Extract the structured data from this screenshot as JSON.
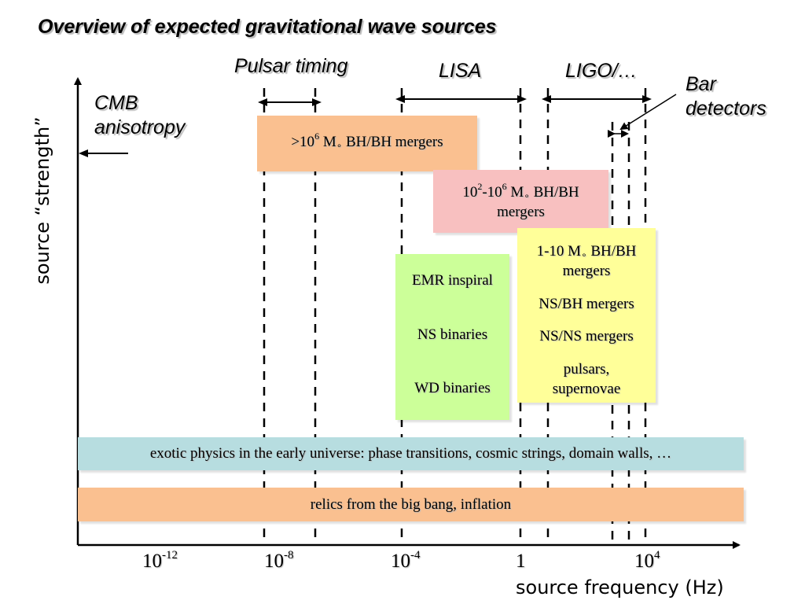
{
  "title": "Overview of expected gravitational wave sources",
  "axes": {
    "xlabel": "source frequency (Hz)",
    "ylabel": "source “strength”",
    "ticks": [
      {
        "base": "10",
        "exp": "-12"
      },
      {
        "base": "10",
        "exp": "-8"
      },
      {
        "base": "10",
        "exp": "-4"
      },
      {
        "base": "1",
        "exp": ""
      },
      {
        "base": "10",
        "exp": "4"
      }
    ]
  },
  "detectors": {
    "pulsar_timing": "Pulsar timing",
    "lisa": "LISA",
    "ligo": "LIGO/…",
    "bar": "Bar detectors"
  },
  "cmb": "CMB anisotropy",
  "boxes": {
    "smbh": {
      "prefix": ">10",
      "exp": "6",
      "mass": "M",
      "sub": "∘",
      "suffix": " BH/BH mergers",
      "color": "#fac090"
    },
    "imbh": {
      "base1": "10",
      "exp1": "2",
      "mid": "-10",
      "exp2": "6",
      "mass": "M",
      "sub": "∘",
      "suffix": " BH/BH",
      "line2": "mergers",
      "color": "#f8c0c0"
    },
    "lisa_sources": {
      "items": [
        "EMR inspiral",
        "NS binaries",
        "WD binaries"
      ],
      "color": "#ccff99"
    },
    "ligo_sources": {
      "first_line1": "1-10 M",
      "first_sub": "∘",
      "first_line1b": " BH/BH",
      "first_line2": "mergers",
      "items": [
        "NS/BH mergers",
        "NS/NS mergers"
      ],
      "last_line1": "pulsars,",
      "last_line2": "supernovae",
      "color": "#ffff99"
    },
    "exotic": {
      "text": "exotic physics in the early universe: phase transitions, cosmic strings, domain walls, …",
      "color": "#b7dde0"
    },
    "relics": {
      "text": "relics from the big bang, inflation",
      "color": "#fac090"
    }
  }
}
